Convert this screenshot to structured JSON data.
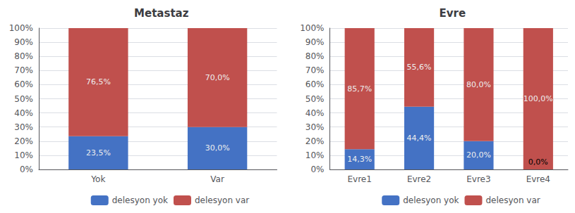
{
  "chart_data": [
    {
      "type": "bar",
      "title": "Metastaz",
      "categories": [
        "Yok",
        "Var"
      ],
      "series": [
        {
          "name": "delesyon yok",
          "color": "#4472C4",
          "values": [
            23.5,
            30.0
          ],
          "value_labels": [
            "23,5%",
            "30,0%"
          ]
        },
        {
          "name": "delesyon var",
          "color": "#C0504D",
          "values": [
            76.5,
            70.0
          ],
          "value_labels": [
            "76,5%",
            "70,0%"
          ]
        }
      ],
      "ylim": [
        0,
        100
      ],
      "yticks": [
        {
          "value": 0,
          "label": "0%"
        },
        {
          "value": 10,
          "label": "10%"
        },
        {
          "value": 20,
          "label": "20%"
        },
        {
          "value": 30,
          "label": "30%"
        },
        {
          "value": 40,
          "label": "40%"
        },
        {
          "value": 50,
          "label": "50%"
        },
        {
          "value": 60,
          "label": "60%"
        },
        {
          "value": 70,
          "label": "70%"
        },
        {
          "value": 80,
          "label": "80%"
        },
        {
          "value": 90,
          "label": "90%"
        },
        {
          "value": 100,
          "label": "100%"
        }
      ],
      "grid": true,
      "stacked": true,
      "data_labels": true,
      "legend": "bottom"
    },
    {
      "type": "bar",
      "title": "Evre",
      "categories": [
        "Evre1",
        "Evre2",
        "Evre3",
        "Evre4"
      ],
      "series": [
        {
          "name": "delesyon yok",
          "color": "#4472C4",
          "values": [
            14.3,
            44.4,
            20.0,
            0.0
          ],
          "value_labels": [
            "14,3%",
            "44,4%",
            "20,0%",
            "0,0%"
          ]
        },
        {
          "name": "delesyon var",
          "color": "#C0504D",
          "values": [
            85.7,
            55.6,
            80.0,
            100.0
          ],
          "value_labels": [
            "85,7%",
            "55,6%",
            "80,0%",
            "100,0%"
          ]
        }
      ],
      "ylim": [
        0,
        100
      ],
      "yticks": [
        {
          "value": 0,
          "label": "0%"
        },
        {
          "value": 10,
          "label": "10%"
        },
        {
          "value": 20,
          "label": "20%"
        },
        {
          "value": 30,
          "label": "30%"
        },
        {
          "value": 40,
          "label": "40%"
        },
        {
          "value": 50,
          "label": "50%"
        },
        {
          "value": 60,
          "label": "60%"
        },
        {
          "value": 70,
          "label": "70%"
        },
        {
          "value": 80,
          "label": "80%"
        },
        {
          "value": 90,
          "label": "90%"
        },
        {
          "value": 100,
          "label": "100%"
        }
      ],
      "grid": true,
      "stacked": true,
      "data_labels": true,
      "legend": "bottom"
    }
  ]
}
